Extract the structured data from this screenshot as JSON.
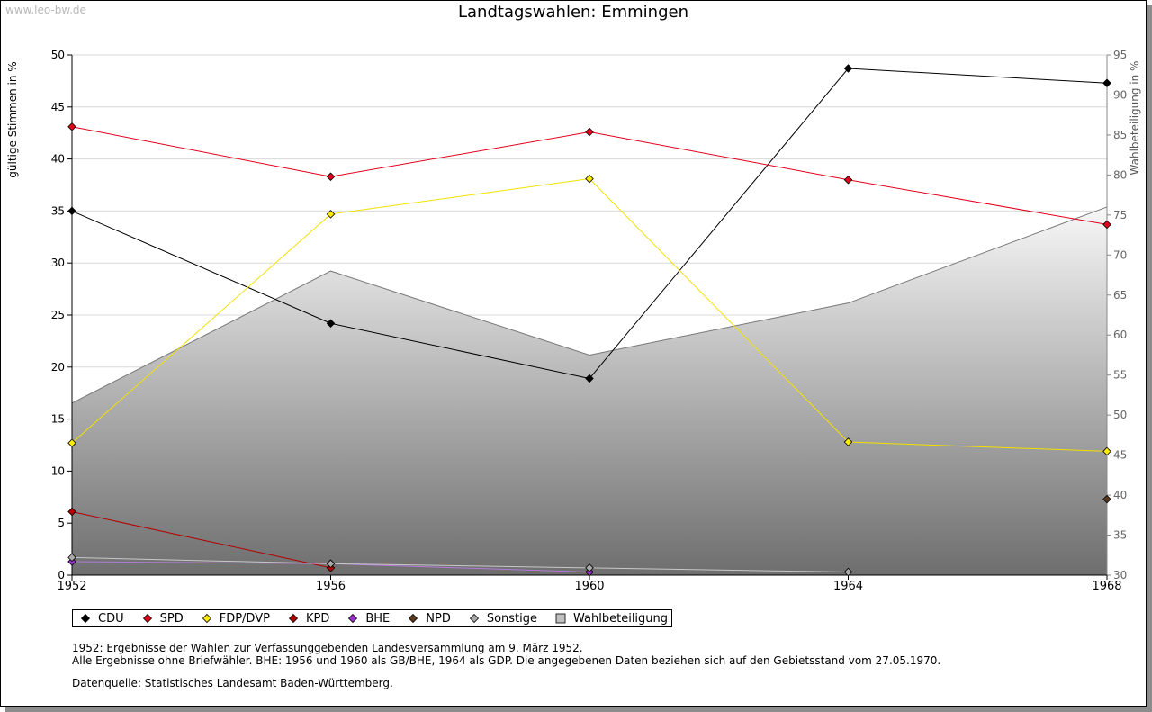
{
  "watermark": "www.leo-bw.de",
  "title": "Landtagswahlen: Emmingen",
  "ylabel_left": "gültige Stimmen in %",
  "ylabel_right": "Wahlbeteiligung in %",
  "notes": [
    "1952: Ergebnisse der Wahlen zur Verfassunggebenden Landesversammlung am 9. März 1952.",
    "Alle Ergebnisse ohne Briefwähler. BHE: 1956 und 1960 als GB/BHE, 1964 als GDP. Die angegebenen Daten beziehen sich auf den Gebietsstand vom 27.05.1970."
  ],
  "source": "Datenquelle: Statistisches Landesamt Baden-Württemberg.",
  "chart_data": {
    "type": "line",
    "x": [
      "1952",
      "1956",
      "1960",
      "1964",
      "1968"
    ],
    "ylim": [
      0,
      50
    ],
    "yticks": [
      0,
      5,
      10,
      15,
      20,
      25,
      30,
      35,
      40,
      45,
      50
    ],
    "y2lim": [
      30,
      95
    ],
    "y2ticks": [
      30,
      35,
      40,
      45,
      50,
      55,
      60,
      65,
      70,
      75,
      80,
      85,
      90,
      95
    ],
    "grid": true,
    "legend_position": "bottom",
    "series": [
      {
        "name": "CDU",
        "color": "#000000",
        "values": [
          35.0,
          24.2,
          18.9,
          48.7,
          47.3
        ]
      },
      {
        "name": "SPD",
        "color": "#e2001a",
        "values": [
          43.1,
          38.3,
          42.6,
          38.0,
          33.7
        ]
      },
      {
        "name": "FDP/DVP",
        "color": "#ffed00",
        "values": [
          12.7,
          34.7,
          38.1,
          12.8,
          11.9
        ]
      },
      {
        "name": "KPD",
        "color": "#b40000",
        "values": [
          6.1,
          0.7,
          null,
          null,
          null
        ]
      },
      {
        "name": "BHE",
        "color": "#9933cc",
        "values": [
          1.3,
          1.1,
          0.3,
          null,
          null
        ]
      },
      {
        "name": "NPD",
        "color": "#5a3a1e",
        "values": [
          null,
          null,
          null,
          null,
          7.3
        ]
      },
      {
        "name": "Sonstige",
        "color": "#aaaaaa",
        "values": [
          1.7,
          1.1,
          0.7,
          0.3,
          null
        ]
      }
    ],
    "area_series": {
      "name": "Wahlbeteiligung",
      "axis": "right",
      "color": "#888888",
      "values": [
        51.5,
        68.0,
        57.5,
        64.0,
        76.0
      ]
    }
  }
}
